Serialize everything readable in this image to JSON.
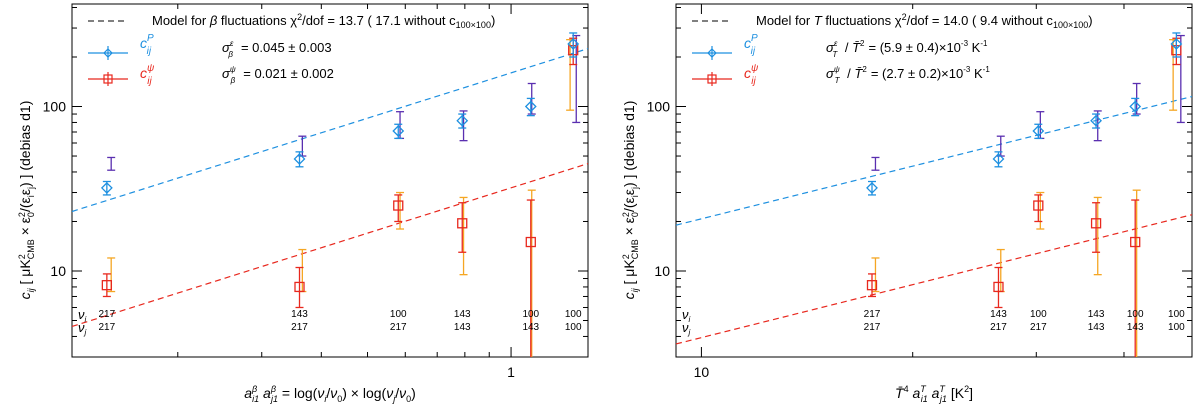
{
  "colors": {
    "blue": "#1e90e0",
    "red": "#e8281e",
    "orange": "#f5a623",
    "purple": "#5a2fb0",
    "black": "#000000"
  },
  "chart_data": [
    {
      "type": "scatter",
      "id": "left",
      "xscale": "log",
      "yscale": "log",
      "xlim": [
        0.12,
        1.45
      ],
      "ylim": [
        3,
        420
      ],
      "xticks": [
        {
          "value": 1,
          "label": "1"
        }
      ],
      "yticks": [
        {
          "value": 10,
          "label": "10"
        },
        {
          "value": 100,
          "label": "100"
        }
      ],
      "xlabel": "a_i1^β a_j1^β = log(ν_i/ν_0) × log(ν_j/ν_0)",
      "ylabel": "c_ij [ μK²_CMB × ε_0²/(ε_i ε_j) ] (debias d1)",
      "legend": {
        "model_label": "Model for β fluctuations χ²/dof =  13.7 ( 17.1 without c100×100)",
        "model_prefix": "Model for ",
        "model_var": "β",
        "model_mid": " fluctuations χ",
        "model_tail": "/dof =  13.7 ( 17.1 without c",
        "model_sub": "100×100",
        "model_close": ")",
        "sigma_e_text": "= 0.045 ± 0.003",
        "sigma_p_text": "= 0.021 ± 0.002"
      },
      "freq_labels": [
        {
          "x": 0.142,
          "nu_i": "217",
          "nu_j": "217"
        },
        {
          "x": 0.36,
          "nu_i": "143",
          "nu_j": "217"
        },
        {
          "x": 0.58,
          "nu_i": "100",
          "nu_j": "217"
        },
        {
          "x": 0.79,
          "nu_i": "143",
          "nu_j": "143"
        },
        {
          "x": 1.1,
          "nu_i": "100",
          "nu_j": "143"
        },
        {
          "x": 1.35,
          "nu_i": "100",
          "nu_j": "100"
        }
      ],
      "series": [
        {
          "name": "c_ij^P",
          "color": "blue",
          "marker": "diamond",
          "points": [
            {
              "x": 0.142,
              "y": 32,
              "lo": 29,
              "hi": 35
            },
            {
              "x": 0.36,
              "y": 48,
              "lo": 43,
              "hi": 53
            },
            {
              "x": 0.58,
              "y": 71,
              "lo": 64,
              "hi": 78
            },
            {
              "x": 0.79,
              "y": 82,
              "lo": 74,
              "hi": 90
            },
            {
              "x": 1.1,
              "y": 100,
              "lo": 88,
              "hi": 112
            },
            {
              "x": 1.35,
              "y": 240,
              "lo": 200,
              "hi": 280
            }
          ]
        },
        {
          "name": "c_ij^ε",
          "color": "purple",
          "marker": "none",
          "points": [
            {
              "x": 0.145,
              "y": 45,
              "lo": 41,
              "hi": 49
            },
            {
              "x": 0.365,
              "y": 58,
              "lo": 50,
              "hi": 66
            },
            {
              "x": 0.585,
              "y": 78,
              "lo": 64,
              "hi": 93
            },
            {
              "x": 0.795,
              "y": 77,
              "lo": 62,
              "hi": 94
            },
            {
              "x": 1.105,
              "y": 113,
              "lo": 90,
              "hi": 138
            },
            {
              "x": 1.37,
              "y": 230,
              "lo": 80,
              "hi": 270
            }
          ]
        },
        {
          "name": "c_ij^ψ",
          "color": "red",
          "marker": "square",
          "points": [
            {
              "x": 0.142,
              "y": 8.2,
              "lo": 7.0,
              "hi": 9.6
            },
            {
              "x": 0.36,
              "y": 8.0,
              "lo": 6.0,
              "hi": 10.5
            },
            {
              "x": 0.58,
              "y": 25,
              "lo": 20,
              "hi": 29
            },
            {
              "x": 0.79,
              "y": 19.5,
              "lo": 13,
              "hi": 26
            },
            {
              "x": 1.1,
              "y": 15,
              "lo": 2,
              "hi": 27
            },
            {
              "x": 1.35,
              "y": 220,
              "lo": 180,
              "hi": 260
            }
          ]
        },
        {
          "name": "c_ij^ψ orange",
          "color": "orange",
          "marker": "none",
          "points": [
            {
              "x": 0.145,
              "y": 9.5,
              "lo": 7.5,
              "hi": 12
            },
            {
              "x": 0.365,
              "y": 10.5,
              "lo": 7.5,
              "hi": 13.5
            },
            {
              "x": 0.585,
              "y": 24,
              "lo": 18,
              "hi": 30
            },
            {
              "x": 0.795,
              "y": 16,
              "lo": 9.5,
              "hi": 28
            },
            {
              "x": 1.105,
              "y": 16,
              "lo": 2,
              "hi": 31
            },
            {
              "x": 1.33,
              "y": 160,
              "lo": 95,
              "hi": 255
            }
          ]
        }
      ],
      "model_lines": [
        {
          "name": "model P",
          "color": "blue",
          "x": [
            0.12,
            1.45
          ],
          "y": [
            23,
            225
          ]
        },
        {
          "name": "model ψ",
          "color": "red",
          "x": [
            0.12,
            1.45
          ],
          "y": [
            4.6,
            45
          ]
        }
      ]
    },
    {
      "type": "scatter",
      "id": "right",
      "xscale": "log",
      "yscale": "log",
      "xlim": [
        9.2,
        50
      ],
      "ylim": [
        3,
        420
      ],
      "xticks": [
        {
          "value": 10,
          "label": "10"
        }
      ],
      "yticks": [
        {
          "value": 10,
          "label": "10"
        },
        {
          "value": 100,
          "label": "100"
        }
      ],
      "xlabel": "T̄⁴ a_i1^T a_j1^T [K²]",
      "ylabel": "c_ij [ μK²_CMB × ε_0²/(ε_i ε_j) ] (debias d1)",
      "legend": {
        "model_label": "Model for T fluctuations χ²/dof =  14.0 (  9.4 without c100×100)",
        "model_prefix": "Model for ",
        "model_var": "T",
        "model_mid": " fluctuations χ",
        "model_tail": "/dof =  14.0 (  9.4 without c",
        "model_sub": "100×100",
        "model_close": ")",
        "sigma_e_text": "= (5.9 ± 0.4)×10",
        "sigma_p_text": "= (2.7 ± 0.2)×10",
        "sigma_exp": "-3",
        "sigma_unit": " K",
        "sigma_unit_exp": "-1"
      },
      "freq_labels": [
        {
          "x": 17.5,
          "nu_i": "217",
          "nu_j": "217"
        },
        {
          "x": 26.5,
          "nu_i": "143",
          "nu_j": "217"
        },
        {
          "x": 30.2,
          "nu_i": "100",
          "nu_j": "217"
        },
        {
          "x": 36.5,
          "nu_i": "143",
          "nu_j": "143"
        },
        {
          "x": 41.5,
          "nu_i": "100",
          "nu_j": "143"
        },
        {
          "x": 47.5,
          "nu_i": "100",
          "nu_j": "100"
        }
      ],
      "series": [
        {
          "name": "c_ij^P",
          "color": "blue",
          "marker": "diamond",
          "points": [
            {
              "x": 17.5,
              "y": 32,
              "lo": 29,
              "hi": 35
            },
            {
              "x": 26.5,
              "y": 48,
              "lo": 43,
              "hi": 53
            },
            {
              "x": 30.2,
              "y": 71,
              "lo": 64,
              "hi": 78
            },
            {
              "x": 36.5,
              "y": 82,
              "lo": 74,
              "hi": 90
            },
            {
              "x": 41.5,
              "y": 100,
              "lo": 88,
              "hi": 112
            },
            {
              "x": 47.5,
              "y": 240,
              "lo": 200,
              "hi": 280
            }
          ]
        },
        {
          "name": "c_ij^ε",
          "color": "purple",
          "marker": "none",
          "points": [
            {
              "x": 17.7,
              "y": 45,
              "lo": 41,
              "hi": 49
            },
            {
              "x": 26.7,
              "y": 58,
              "lo": 50,
              "hi": 66
            },
            {
              "x": 30.4,
              "y": 78,
              "lo": 64,
              "hi": 93
            },
            {
              "x": 36.7,
              "y": 77,
              "lo": 62,
              "hi": 94
            },
            {
              "x": 41.7,
              "y": 113,
              "lo": 90,
              "hi": 138
            },
            {
              "x": 48.2,
              "y": 230,
              "lo": 80,
              "hi": 270
            }
          ]
        },
        {
          "name": "c_ij^ψ",
          "color": "red",
          "marker": "square",
          "points": [
            {
              "x": 17.5,
              "y": 8.2,
              "lo": 7.0,
              "hi": 9.6
            },
            {
              "x": 26.5,
              "y": 8.0,
              "lo": 6.0,
              "hi": 10.5
            },
            {
              "x": 30.2,
              "y": 25,
              "lo": 20,
              "hi": 29
            },
            {
              "x": 36.5,
              "y": 19.5,
              "lo": 13,
              "hi": 26
            },
            {
              "x": 41.5,
              "y": 15,
              "lo": 2,
              "hi": 27
            },
            {
              "x": 47.5,
              "y": 220,
              "lo": 180,
              "hi": 260
            }
          ]
        },
        {
          "name": "c_ij^ψ orange",
          "color": "orange",
          "marker": "none",
          "points": [
            {
              "x": 17.7,
              "y": 9.5,
              "lo": 7.5,
              "hi": 12
            },
            {
              "x": 26.7,
              "y": 10.5,
              "lo": 7.5,
              "hi": 13.5
            },
            {
              "x": 30.4,
              "y": 24,
              "lo": 18,
              "hi": 30
            },
            {
              "x": 36.7,
              "y": 16,
              "lo": 9.5,
              "hi": 28
            },
            {
              "x": 41.7,
              "y": 16,
              "lo": 2,
              "hi": 31
            },
            {
              "x": 47.0,
              "y": 160,
              "lo": 95,
              "hi": 255
            }
          ]
        }
      ],
      "model_lines": [
        {
          "name": "model P",
          "color": "blue",
          "x": [
            9.2,
            50
          ],
          "y": [
            19,
            115
          ]
        },
        {
          "name": "model ψ",
          "color": "red",
          "x": [
            9.2,
            50
          ],
          "y": [
            3.6,
            22
          ]
        }
      ]
    }
  ]
}
